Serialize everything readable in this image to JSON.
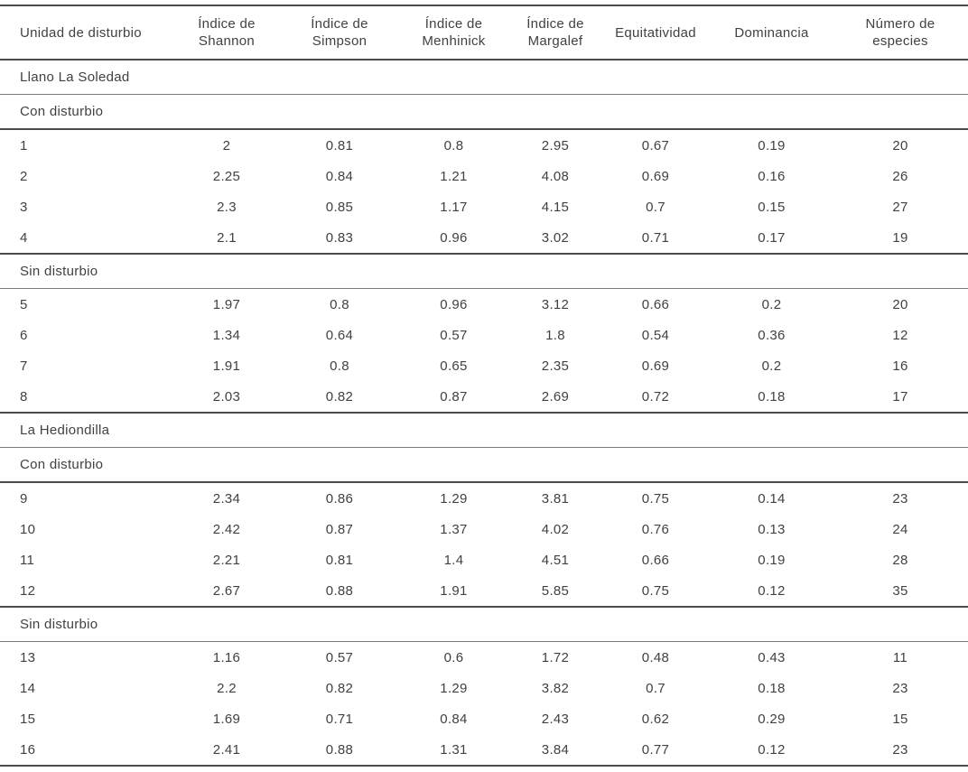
{
  "colors": {
    "text": "#414141",
    "rule_heavy": "#4a4a4a",
    "rule_light": "#7a7a7a",
    "background": "#ffffff"
  },
  "table": {
    "columns": [
      "Unidad de disturbio",
      "Índice de Shannon",
      "Índice de Simpson",
      "Índice de Menhinick",
      "Índice de Margalef",
      "Equitatividad",
      "Dominancia",
      "Número de especies"
    ],
    "sections": [
      {
        "region": "Llano La Soledad",
        "groups": [
          {
            "label": "Con disturbio",
            "rows": [
              [
                "1",
                "2",
                "0.81",
                "0.8",
                "2.95",
                "0.67",
                "0.19",
                "20"
              ],
              [
                "2",
                "2.25",
                "0.84",
                "1.21",
                "4.08",
                "0.69",
                "0.16",
                "26"
              ],
              [
                "3",
                "2.3",
                "0.85",
                "1.17",
                "4.15",
                "0.7",
                "0.15",
                "27"
              ],
              [
                "4",
                "2.1",
                "0.83",
                "0.96",
                "3.02",
                "0.71",
                "0.17",
                "19"
              ]
            ]
          },
          {
            "label": "Sin disturbio",
            "rows": [
              [
                "5",
                "1.97",
                "0.8",
                "0.96",
                "3.12",
                "0.66",
                "0.2",
                "20"
              ],
              [
                "6",
                "1.34",
                "0.64",
                "0.57",
                "1.8",
                "0.54",
                "0.36",
                "12"
              ],
              [
                "7",
                "1.91",
                "0.8",
                "0.65",
                "2.35",
                "0.69",
                "0.2",
                "16"
              ],
              [
                "8",
                "2.03",
                "0.82",
                "0.87",
                "2.69",
                "0.72",
                "0.18",
                "17"
              ]
            ]
          }
        ]
      },
      {
        "region": "La Hediondilla",
        "groups": [
          {
            "label": "Con disturbio",
            "rows": [
              [
                "9",
                "2.34",
                "0.86",
                "1.29",
                "3.81",
                "0.75",
                "0.14",
                "23"
              ],
              [
                "10",
                "2.42",
                "0.87",
                "1.37",
                "4.02",
                "0.76",
                "0.13",
                "24"
              ],
              [
                "11",
                "2.21",
                "0.81",
                "1.4",
                "4.51",
                "0.66",
                "0.19",
                "28"
              ],
              [
                "12",
                "2.67",
                "0.88",
                "1.91",
                "5.85",
                "0.75",
                "0.12",
                "35"
              ]
            ]
          },
          {
            "label": "Sin disturbio",
            "rows": [
              [
                "13",
                "1.16",
                "0.57",
                "0.6",
                "1.72",
                "0.48",
                "0.43",
                "11"
              ],
              [
                "14",
                "2.2",
                "0.82",
                "1.29",
                "3.82",
                "0.7",
                "0.18",
                "23"
              ],
              [
                "15",
                "1.69",
                "0.71",
                "0.84",
                "2.43",
                "0.62",
                "0.29",
                "15"
              ],
              [
                "16",
                "2.41",
                "0.88",
                "1.31",
                "3.84",
                "0.77",
                "0.12",
                "23"
              ]
            ]
          }
        ]
      }
    ]
  }
}
